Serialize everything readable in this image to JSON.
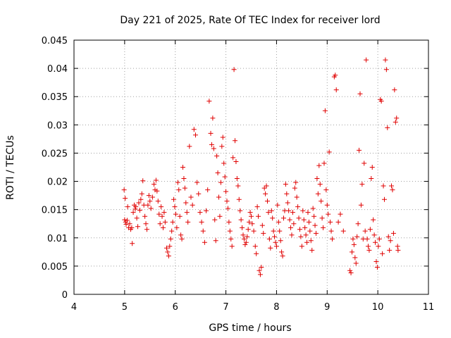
{
  "chart_data": {
    "type": "scatter",
    "title": "Day 221 of 2025, Rate Of TEC Index for receiver lord",
    "xlabel": "GPS time / hours",
    "ylabel": "ROTI / TECUs",
    "xlim": [
      4,
      11
    ],
    "ylim": [
      0,
      0.045
    ],
    "x_ticks": [
      "4",
      "5",
      "6",
      "7",
      "8",
      "9",
      "10",
      "11"
    ],
    "y_ticks": [
      "0",
      "0.005",
      "0.01",
      "0.015",
      "0.02",
      "0.025",
      "0.03",
      "0.035",
      "0.04",
      "0.045"
    ],
    "grid": true,
    "legend": "none",
    "marker": "plus",
    "color": "#e00000",
    "series": [
      {
        "points": [
          [
            4.99,
            0.0185
          ],
          [
            5.0,
            0.0132
          ],
          [
            5.01,
            0.017
          ],
          [
            5.02,
            0.0128
          ],
          [
            5.03,
            0.0124
          ],
          [
            5.05,
            0.0131
          ],
          [
            5.06,
            0.0155
          ],
          [
            5.08,
            0.0118
          ],
          [
            5.1,
            0.0125
          ],
          [
            5.12,
            0.0115
          ],
          [
            5.14,
            0.0118
          ],
          [
            5.15,
            0.009
          ],
          [
            5.17,
            0.0145
          ],
          [
            5.19,
            0.0158
          ],
          [
            5.21,
            0.0151
          ],
          [
            5.22,
            0.0155
          ],
          [
            5.24,
            0.0135
          ],
          [
            5.26,
            0.012
          ],
          [
            5.28,
            0.0162
          ],
          [
            5.3,
            0.0149
          ],
          [
            5.32,
            0.0168
          ],
          [
            5.34,
            0.0178
          ],
          [
            5.36,
            0.0201
          ],
          [
            5.38,
            0.0158
          ],
          [
            5.4,
            0.0138
          ],
          [
            5.42,
            0.0125
          ],
          [
            5.44,
            0.0115
          ],
          [
            5.46,
            0.0158
          ],
          [
            5.48,
            0.0175
          ],
          [
            5.5,
            0.0165
          ],
          [
            5.52,
            0.0152
          ],
          [
            5.55,
            0.0172
          ],
          [
            5.58,
            0.0195
          ],
          [
            5.6,
            0.0185
          ],
          [
            5.62,
            0.0202
          ],
          [
            5.64,
            0.0183
          ],
          [
            5.66,
            0.0165
          ],
          [
            5.68,
            0.0142
          ],
          [
            5.7,
            0.0125
          ],
          [
            5.72,
            0.0155
          ],
          [
            5.74,
            0.0138
          ],
          [
            5.76,
            0.0118
          ],
          [
            5.78,
            0.0145
          ],
          [
            5.8,
            0.0128
          ],
          [
            5.83,
            0.0082
          ],
          [
            5.85,
            0.0075
          ],
          [
            5.87,
            0.0068
          ],
          [
            5.89,
            0.0085
          ],
          [
            5.91,
            0.0098
          ],
          [
            5.93,
            0.0112
          ],
          [
            5.95,
            0.0128
          ],
          [
            5.97,
            0.0168
          ],
          [
            5.99,
            0.0155
          ],
          [
            6.01,
            0.0142
          ],
          [
            6.03,
            0.0118
          ],
          [
            6.05,
            0.0198
          ],
          [
            6.07,
            0.0185
          ],
          [
            6.09,
            0.0138
          ],
          [
            6.11,
            0.0105
          ],
          [
            6.13,
            0.0098
          ],
          [
            6.15,
            0.0225
          ],
          [
            6.17,
            0.0205
          ],
          [
            6.19,
            0.0188
          ],
          [
            6.21,
            0.0162
          ],
          [
            6.23,
            0.0145
          ],
          [
            6.25,
            0.0128
          ],
          [
            6.28,
            0.0262
          ],
          [
            6.31,
            0.0172
          ],
          [
            6.34,
            0.0158
          ],
          [
            6.37,
            0.0292
          ],
          [
            6.4,
            0.0282
          ],
          [
            6.43,
            0.0198
          ],
          [
            6.46,
            0.0178
          ],
          [
            6.49,
            0.0145
          ],
          [
            6.52,
            0.0128
          ],
          [
            6.55,
            0.0112
          ],
          [
            6.58,
            0.0092
          ],
          [
            6.61,
            0.0148
          ],
          [
            6.64,
            0.0185
          ],
          [
            6.67,
            0.0342
          ],
          [
            6.7,
            0.0285
          ],
          [
            6.72,
            0.0265
          ],
          [
            6.74,
            0.0312
          ],
          [
            6.76,
            0.0258
          ],
          [
            6.78,
            0.0132
          ],
          [
            6.8,
            0.0095
          ],
          [
            6.82,
            0.0245
          ],
          [
            6.84,
            0.0215
          ],
          [
            6.86,
            0.0172
          ],
          [
            6.88,
            0.0138
          ],
          [
            6.9,
            0.0198
          ],
          [
            6.92,
            0.0262
          ],
          [
            6.94,
            0.0278
          ],
          [
            6.96,
            0.0232
          ],
          [
            6.98,
            0.0208
          ],
          [
            7.0,
            0.0182
          ],
          [
            7.02,
            0.0165
          ],
          [
            7.04,
            0.0152
          ],
          [
            7.06,
            0.0128
          ],
          [
            7.08,
            0.0112
          ],
          [
            7.1,
            0.0098
          ],
          [
            7.12,
            0.0085
          ],
          [
            7.14,
            0.0242
          ],
          [
            7.16,
            0.0398
          ],
          [
            7.18,
            0.0272
          ],
          [
            7.2,
            0.0235
          ],
          [
            7.22,
            0.0205
          ],
          [
            7.24,
            0.0192
          ],
          [
            7.26,
            0.0168
          ],
          [
            7.28,
            0.0148
          ],
          [
            7.3,
            0.0132
          ],
          [
            7.32,
            0.0118
          ],
          [
            7.34,
            0.0105
          ],
          [
            7.36,
            0.0098
          ],
          [
            7.38,
            0.0088
          ],
          [
            7.4,
            0.0092
          ],
          [
            7.42,
            0.0102
          ],
          [
            7.44,
            0.0115
          ],
          [
            7.46,
            0.0128
          ],
          [
            7.48,
            0.0145
          ],
          [
            7.5,
            0.0138
          ],
          [
            7.52,
            0.0125
          ],
          [
            7.55,
            0.0112
          ],
          [
            7.58,
            0.0085
          ],
          [
            7.6,
            0.0072
          ],
          [
            7.62,
            0.0155
          ],
          [
            7.64,
            0.0138
          ],
          [
            7.66,
            0.0042
          ],
          [
            7.68,
            0.0035
          ],
          [
            7.7,
            0.0048
          ],
          [
            7.72,
            0.0122
          ],
          [
            7.74,
            0.0108
          ],
          [
            7.76,
            0.0188
          ],
          [
            7.78,
            0.0178
          ],
          [
            7.8,
            0.0192
          ],
          [
            7.82,
            0.0165
          ],
          [
            7.84,
            0.0145
          ],
          [
            7.86,
            0.0098
          ],
          [
            7.88,
            0.0082
          ],
          [
            7.9,
            0.0148
          ],
          [
            7.92,
            0.0135
          ],
          [
            7.94,
            0.0112
          ],
          [
            7.96,
            0.0102
          ],
          [
            7.98,
            0.0092
          ],
          [
            8.0,
            0.0085
          ],
          [
            8.02,
            0.0158
          ],
          [
            8.04,
            0.0128
          ],
          [
            8.06,
            0.0112
          ],
          [
            8.08,
            0.0095
          ],
          [
            8.1,
            0.0075
          ],
          [
            8.12,
            0.0068
          ],
          [
            8.14,
            0.0135
          ],
          [
            8.16,
            0.0148
          ],
          [
            8.18,
            0.0195
          ],
          [
            8.2,
            0.0178
          ],
          [
            8.22,
            0.0162
          ],
          [
            8.24,
            0.0148
          ],
          [
            8.26,
            0.0132
          ],
          [
            8.28,
            0.0118
          ],
          [
            8.3,
            0.0105
          ],
          [
            8.32,
            0.0145
          ],
          [
            8.34,
            0.0125
          ],
          [
            8.36,
            0.0188
          ],
          [
            8.38,
            0.0198
          ],
          [
            8.4,
            0.0172
          ],
          [
            8.42,
            0.0155
          ],
          [
            8.44,
            0.0135
          ],
          [
            8.46,
            0.0115
          ],
          [
            8.48,
            0.0102
          ],
          [
            8.5,
            0.0085
          ],
          [
            8.52,
            0.0148
          ],
          [
            8.54,
            0.0132
          ],
          [
            8.56,
            0.0118
          ],
          [
            8.58,
            0.0105
          ],
          [
            8.6,
            0.0092
          ],
          [
            8.62,
            0.0145
          ],
          [
            8.64,
            0.0128
          ],
          [
            8.66,
            0.0112
          ],
          [
            8.68,
            0.0095
          ],
          [
            8.7,
            0.0078
          ],
          [
            8.72,
            0.0152
          ],
          [
            8.74,
            0.0138
          ],
          [
            8.76,
            0.0122
          ],
          [
            8.78,
            0.0108
          ],
          [
            8.8,
            0.0205
          ],
          [
            8.82,
            0.0178
          ],
          [
            8.84,
            0.0228
          ],
          [
            8.86,
            0.0195
          ],
          [
            8.88,
            0.0165
          ],
          [
            8.9,
            0.0135
          ],
          [
            8.92,
            0.0118
          ],
          [
            8.94,
            0.0232
          ],
          [
            8.96,
            0.0325
          ],
          [
            8.98,
            0.0185
          ],
          [
            9.0,
            0.0158
          ],
          [
            9.02,
            0.0142
          ],
          [
            9.04,
            0.0252
          ],
          [
            9.06,
            0.0128
          ],
          [
            9.08,
            0.0112
          ],
          [
            9.1,
            0.0098
          ],
          [
            9.14,
            0.0385
          ],
          [
            9.16,
            0.0388
          ],
          [
            9.18,
            0.0362
          ],
          [
            9.22,
            0.0128
          ],
          [
            9.26,
            0.0142
          ],
          [
            9.32,
            0.0112
          ],
          [
            9.45,
            0.0042
          ],
          [
            9.47,
            0.0038
          ],
          [
            9.49,
            0.0075
          ],
          [
            9.51,
            0.0098
          ],
          [
            9.53,
            0.0088
          ],
          [
            9.55,
            0.0065
          ],
          [
            9.57,
            0.0055
          ],
          [
            9.59,
            0.0102
          ],
          [
            9.61,
            0.0125
          ],
          [
            9.63,
            0.0255
          ],
          [
            9.65,
            0.0355
          ],
          [
            9.67,
            0.0158
          ],
          [
            9.69,
            0.0195
          ],
          [
            9.71,
            0.0098
          ],
          [
            9.73,
            0.0232
          ],
          [
            9.75,
            0.0112
          ],
          [
            9.77,
            0.0415
          ],
          [
            9.79,
            0.0098
          ],
          [
            9.81,
            0.0085
          ],
          [
            9.83,
            0.0078
          ],
          [
            9.85,
            0.0115
          ],
          [
            9.87,
            0.0205
          ],
          [
            9.89,
            0.0225
          ],
          [
            9.91,
            0.0132
          ],
          [
            9.93,
            0.0105
          ],
          [
            9.95,
            0.0092
          ],
          [
            9.97,
            0.0058
          ],
          [
            9.99,
            0.0048
          ],
          [
            10.01,
            0.0085
          ],
          [
            10.03,
            0.0098
          ],
          [
            10.05,
            0.0345
          ],
          [
            10.07,
            0.0342
          ],
          [
            10.09,
            0.0072
          ],
          [
            10.11,
            0.0192
          ],
          [
            10.13,
            0.0168
          ],
          [
            10.15,
            0.0415
          ],
          [
            10.17,
            0.0398
          ],
          [
            10.19,
            0.0295
          ],
          [
            10.21,
            0.0102
          ],
          [
            10.23,
            0.0078
          ],
          [
            10.25,
            0.0095
          ],
          [
            10.27,
            0.0192
          ],
          [
            10.29,
            0.0185
          ],
          [
            10.31,
            0.0108
          ],
          [
            10.33,
            0.0362
          ],
          [
            10.35,
            0.0305
          ],
          [
            10.37,
            0.0312
          ],
          [
            10.39,
            0.0085
          ],
          [
            10.4,
            0.0078
          ]
        ]
      }
    ]
  }
}
